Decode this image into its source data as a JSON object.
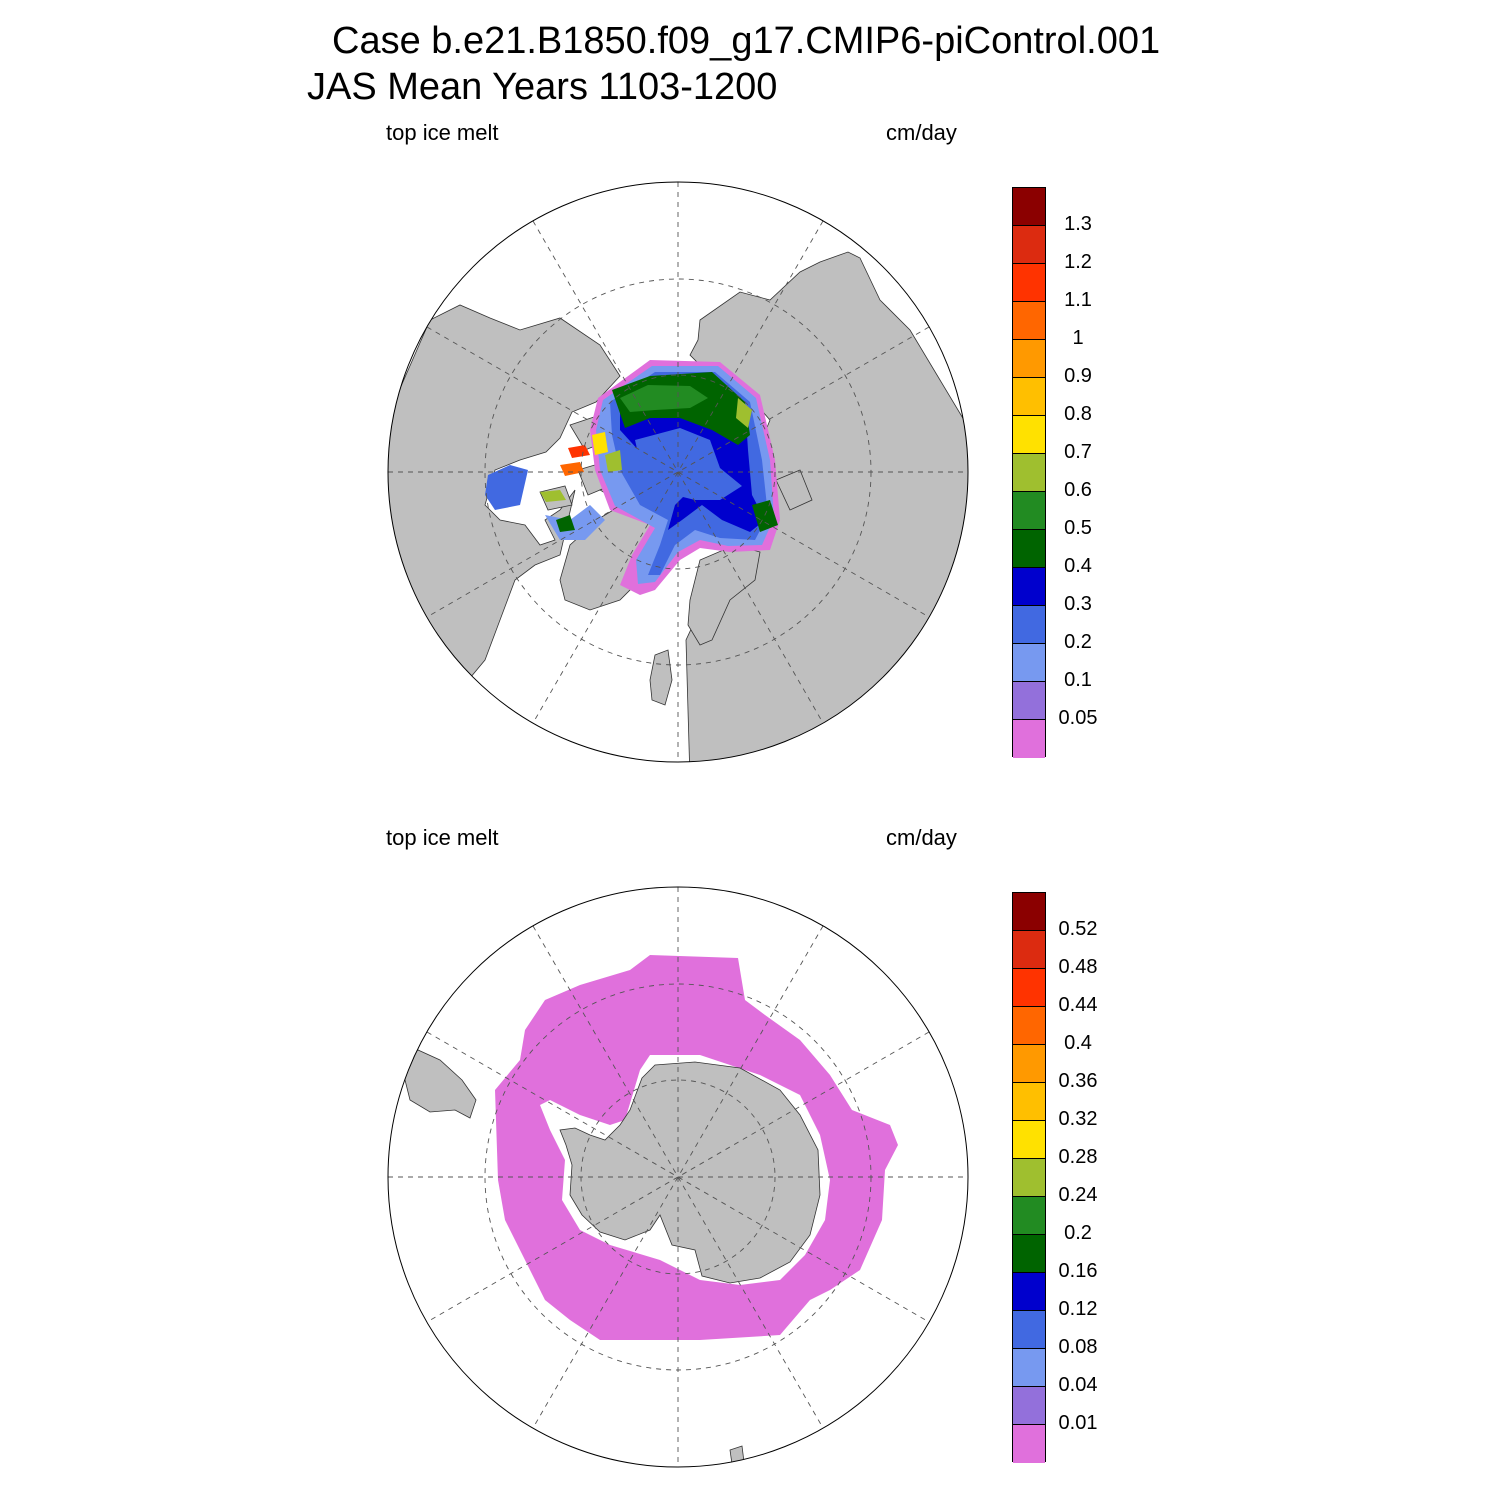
{
  "title": {
    "line1": "Case b.e21.B1850.f09_g17.CMIP6-piControl.001",
    "line2": "JAS Mean   Years 1103-1200"
  },
  "colors": {
    "ocean": "#ffffff",
    "land": "#bfbfbf",
    "grid": "#555555"
  },
  "panels": [
    {
      "hemisphere": "north",
      "left_label": "top ice melt",
      "right_label": "cm/day",
      "levels": [
        "1.3",
        "1.2",
        "1.1",
        "1",
        "0.9",
        "0.8",
        "0.7",
        "0.6",
        "0.5",
        "0.4",
        "0.3",
        "0.2",
        "0.1",
        "0.05"
      ],
      "palette": [
        "#8b0000",
        "#dc2b10",
        "#ff3300",
        "#ff6600",
        "#ff9900",
        "#ffbf00",
        "#ffe100",
        "#9fbf2f",
        "#228b22",
        "#006400",
        "#0000cd",
        "#4169e1",
        "#7799f0",
        "#9370db",
        "#e070dc"
      ]
    },
    {
      "hemisphere": "south",
      "left_label": "top ice melt",
      "right_label": "cm/day",
      "levels": [
        "0.52",
        "0.48",
        "0.44",
        "0.4",
        "0.36",
        "0.32",
        "0.28",
        "0.24",
        "0.2",
        "0.16",
        "0.12",
        "0.08",
        "0.04",
        "0.01"
      ],
      "palette": [
        "#8b0000",
        "#dc2b10",
        "#ff3300",
        "#ff6600",
        "#ff9900",
        "#ffbf00",
        "#ffe100",
        "#9fbf2f",
        "#228b22",
        "#006400",
        "#0000cd",
        "#4169e1",
        "#7799f0",
        "#9370db",
        "#e070dc"
      ]
    }
  ]
}
